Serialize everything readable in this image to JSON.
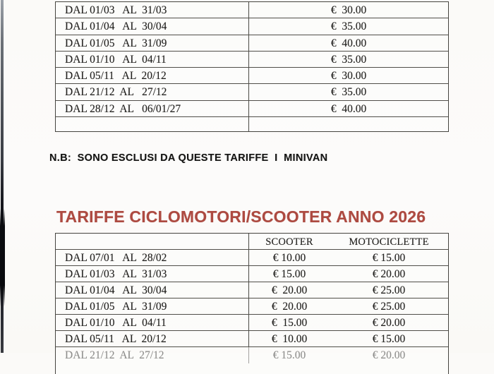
{
  "page": {
    "paper_color": "#fbfaf8",
    "border_color": "#45443f",
    "heading_color": "#ad4a41"
  },
  "note": {
    "text": "N.B:  SONO ESCLUSI DA QUESTE TARIFFE  I  MINIVAN"
  },
  "heading": {
    "text": "TARIFFE CICLOMOTORI/SCOOTER ANNO 2026"
  },
  "table1": {
    "rows": [
      {
        "period": "DAL 01/03   AL  31/03",
        "price": "€  30.00"
      },
      {
        "period": "DAL 01/04   AL  30/04",
        "price": "€  35.00"
      },
      {
        "period": "DAL 01/05   AL  31/09",
        "price": "€  40.00"
      },
      {
        "period": "DAL 01/10   AL  04/11",
        "price": "€  35.00"
      },
      {
        "period": "DAL 05/11   AL  20/12",
        "price": "€  30.00"
      },
      {
        "period": "DAL 21/12  AL   27/12",
        "price": "€  35.00"
      },
      {
        "period": "DAL 28/12  AL   06/01/27",
        "price": "€  40.00"
      },
      {
        "period": "",
        "price": ""
      }
    ]
  },
  "table2": {
    "header_scooter": "SCOOTER",
    "header_moto": "MOTOCICLETTE",
    "rows": [
      {
        "period": "DAL 07/01   AL  28/02",
        "scooter": "€ 10.00",
        "moto": "€ 15.00"
      },
      {
        "period": "DAL 01/03   AL  31/03",
        "scooter": "€ 15.00",
        "moto": "€ 20.00"
      },
      {
        "period": "DAL 01/04   AL  30/04",
        "scooter": "€  20.00",
        "moto": "€ 25.00"
      },
      {
        "period": "DAL 01/05   AL  31/09",
        "scooter": "€  20.00",
        "moto": "€ 25.00"
      },
      {
        "period": "DAL 01/10   AL  04/11",
        "scooter": "€  15.00",
        "moto": "€ 20.00"
      },
      {
        "period": "DAL 05/11   AL  20/12",
        "scooter": "€  10.00",
        "moto": "€ 15.00"
      },
      {
        "period": "DAL 21/12  AL  27/12",
        "scooter": "€ 15.00",
        "moto": "€ 20.00",
        "partial": true
      }
    ]
  }
}
